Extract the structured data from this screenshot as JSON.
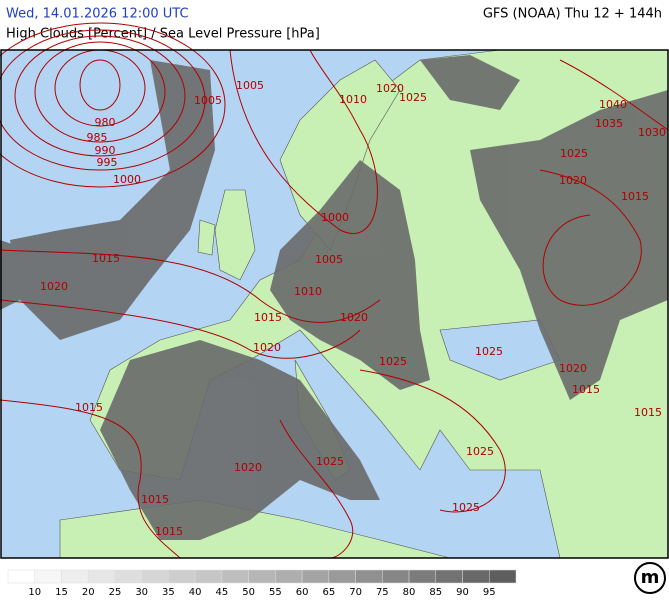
{
  "header": {
    "datetime": "Wed, 14.01.2026 12:00 UTC",
    "model": "GFS (NOAA) Thu 12 + 144h",
    "title": "High Clouds [Percent] / Sea Level Pressure [hPa]"
  },
  "map": {
    "isobar_labels": [
      "1005",
      "1005",
      "980",
      "985",
      "990",
      "995",
      "1000",
      "1010",
      "1020",
      "1025",
      "1040",
      "1035",
      "1030",
      "1025",
      "1020",
      "1015",
      "1000",
      "1005",
      "1015",
      "1020",
      "1010",
      "1015",
      "1020",
      "1020",
      "1025",
      "1025",
      "1020",
      "1015",
      "1015",
      "1015",
      "1025",
      "1025",
      "1020",
      "1015",
      "1025",
      "1015"
    ]
  },
  "legend": {
    "ticks": [
      10,
      15,
      20,
      25,
      30,
      35,
      40,
      45,
      50,
      55,
      60,
      65,
      70,
      75,
      80,
      85,
      90,
      95
    ],
    "colors": [
      "#ffffff",
      "#f6f6f6",
      "#eeeeee",
      "#e6e6e6",
      "#dedede",
      "#d6d6d6",
      "#cecece",
      "#c6c6c6",
      "#bebebe",
      "#b6b6b6",
      "#aeaeae",
      "#a4a4a4",
      "#9a9a9a",
      "#909090",
      "#868686",
      "#7c7c7c",
      "#727272",
      "#686868",
      "#5e5e5e"
    ]
  },
  "logo": "m"
}
